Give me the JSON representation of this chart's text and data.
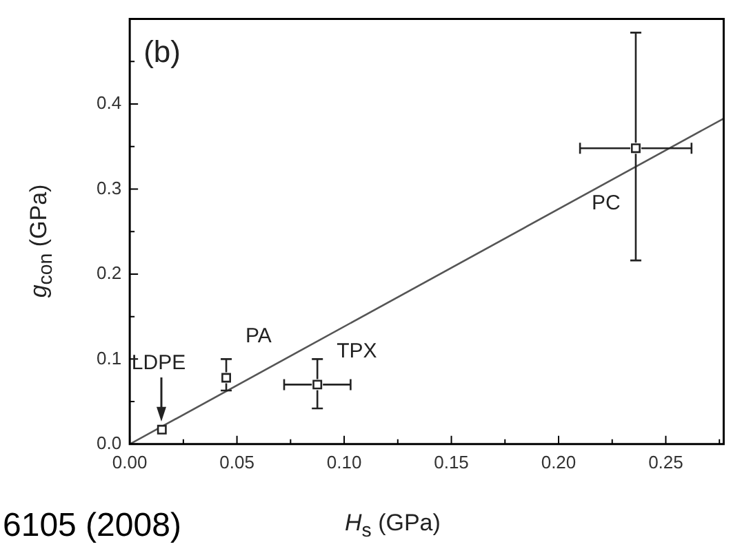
{
  "chart_data": {
    "type": "scatter",
    "xlabel": "H$_{s}$ (GPa)",
    "ylabel": "g$_{con}$ (GPa)",
    "xlim": [
      0,
      0.277
    ],
    "ylim": [
      0,
      0.5
    ],
    "xticks": [
      {
        "value": 0,
        "label": "0.00"
      },
      {
        "value": 0.025,
        "label": null
      },
      {
        "value": 0.05,
        "label": "0.05"
      },
      {
        "value": 0.075,
        "label": null
      },
      {
        "value": 0.1,
        "label": "0.10"
      },
      {
        "value": 0.125,
        "label": null
      },
      {
        "value": 0.15,
        "label": "0.15"
      },
      {
        "value": 0.175,
        "label": null
      },
      {
        "value": 0.2,
        "label": "0.20"
      },
      {
        "value": 0.225,
        "label": null
      },
      {
        "value": 0.25,
        "label": "0.25"
      },
      {
        "value": 0.275,
        "label": null
      }
    ],
    "yticks": [
      {
        "value": 0,
        "label": "0.0"
      },
      {
        "value": 0.05,
        "label": null
      },
      0.1,
      {
        "value": 0.15,
        "label": null
      },
      0.2,
      {
        "value": 0.25,
        "label": null
      },
      0.3,
      {
        "value": 0.35,
        "label": null
      },
      0.4,
      {
        "value": 0.45,
        "label": null
      }
    ],
    "grid": false,
    "legend": false,
    "series": [
      {
        "marker": "square",
        "color": "#222222",
        "x": [
          0.015,
          0.045,
          0.0875,
          0.236
        ],
        "values": [
          0.017,
          0.078,
          0.07,
          0.348
        ],
        "errors": [
          null,
          [
            0.063,
            0.1
          ],
          [
            0.042,
            0.1
          ],
          [
            0.216,
            0.484
          ]
        ],
        "xerrors": [
          null,
          null,
          [
            0.072,
            0.103
          ],
          [
            0.21,
            0.262
          ]
        ]
      },
      {
        "type": "line",
        "color": "#555555",
        "x": [
          0,
          0.277
        ],
        "values": [
          0,
          0.383
        ]
      }
    ],
    "annotations": [
      "(b)",
      "6105 (2008)",
      {
        "text": "LDPE",
        "x": 0.015,
        "y": 0.017
      },
      {
        "text": "PA",
        "x": 0.045,
        "y": 0.078
      },
      {
        "text": "TPX",
        "x": 0.0875,
        "y": 0.07
      },
      {
        "text": "PC",
        "x": 0.236,
        "y": 0.348
      }
    ]
  }
}
